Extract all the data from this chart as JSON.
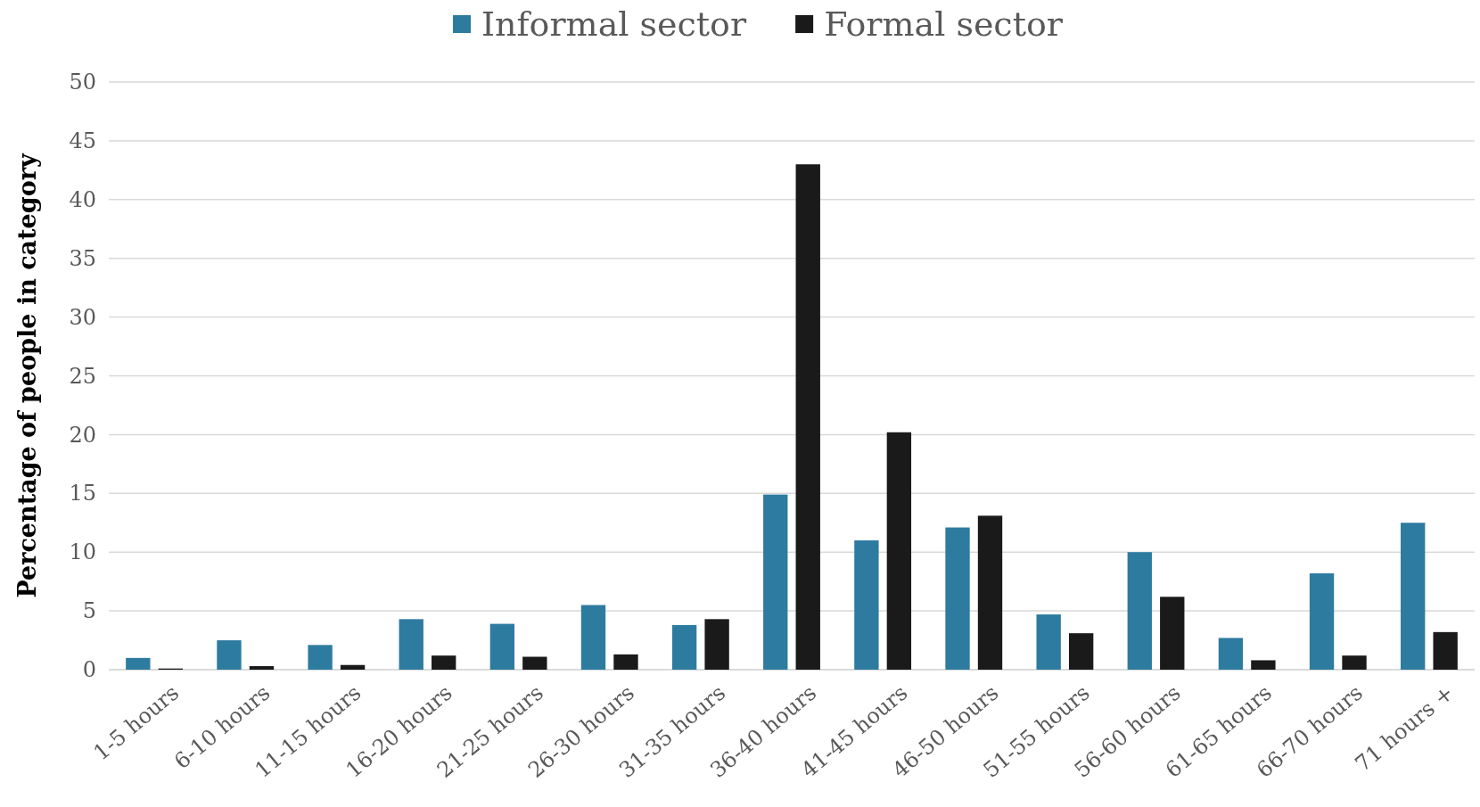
{
  "chart_data": {
    "type": "bar",
    "ylabel": "Percentage of people in category",
    "categories": [
      "1-5 hours",
      "6-10 hours",
      "11-15 hours",
      "16-20 hours",
      "21-25 hours",
      "26-30 hours",
      "31-35 hours",
      "36-40 hours",
      "41-45 hours",
      "46-50 hours",
      "51-55 hours",
      "56-60 hours",
      "61-65 hours",
      "66-70 hours",
      "71 hours +"
    ],
    "series": [
      {
        "name": "Informal sector",
        "color": "#2e7ba0",
        "values": [
          1.0,
          2.5,
          2.1,
          4.3,
          3.9,
          5.5,
          3.8,
          14.9,
          11.0,
          12.1,
          4.7,
          10.0,
          2.7,
          8.2,
          12.5
        ]
      },
      {
        "name": "Formal sector",
        "color": "#1a1a1a",
        "values": [
          0.1,
          0.3,
          0.4,
          1.2,
          1.1,
          1.3,
          4.3,
          43,
          20.2,
          13.1,
          3.1,
          6.2,
          0.8,
          1.2,
          3.2
        ]
      }
    ],
    "ylim": [
      0,
      50
    ],
    "yticks": [
      0,
      5,
      10,
      15,
      20,
      25,
      30,
      35,
      40,
      45,
      50
    ],
    "grid": "y",
    "legend": "top"
  }
}
